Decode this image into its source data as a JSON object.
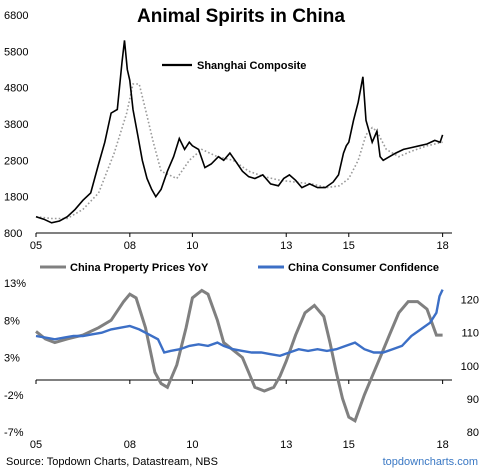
{
  "colors": {
    "shanghai": "#000000",
    "shanghai_ma": "#9a9a9a",
    "property": "#808080",
    "confidence": "#3c6fc6",
    "brand": "#3a78c4"
  },
  "footer": {
    "source": "Source: Topdown Charts, Datastream, NBS",
    "brand": "topdowncharts.com"
  },
  "chart_data": [
    {
      "type": "line",
      "title": "Animal Spirits in China",
      "xlim": [
        2005,
        2018.3
      ],
      "ylim": [
        800,
        6800
      ],
      "x_ticks": [
        2005,
        2008,
        2010,
        2013,
        2015,
        2018
      ],
      "x_tick_labels": [
        "05",
        "08",
        "10",
        "13",
        "15",
        "18"
      ],
      "y_ticks": [
        800,
        1800,
        2800,
        3800,
        4800,
        5800,
        6800
      ],
      "y_tick_labels": [
        "800",
        "1800",
        "2800",
        "3800",
        "4800",
        "5800",
        "6800"
      ],
      "legend_position": "top-center",
      "series": [
        {
          "name": "Shanghai Composite",
          "color": "#000000",
          "style": "solid",
          "x": [
            2005.0,
            2005.25,
            2005.5,
            2005.75,
            2006.0,
            2006.25,
            2006.5,
            2006.75,
            2007.0,
            2007.2,
            2007.4,
            2007.6,
            2007.75,
            2007.83,
            2007.92,
            2008.0,
            2008.1,
            2008.25,
            2008.4,
            2008.55,
            2008.7,
            2008.83,
            2009.0,
            2009.2,
            2009.4,
            2009.58,
            2009.75,
            2009.9,
            2010.0,
            2010.2,
            2010.4,
            2010.6,
            2010.83,
            2011.0,
            2011.2,
            2011.4,
            2011.6,
            2011.8,
            2012.0,
            2012.25,
            2012.5,
            2012.75,
            2012.92,
            2013.1,
            2013.3,
            2013.5,
            2013.75,
            2014.0,
            2014.25,
            2014.5,
            2014.67,
            2014.83,
            2014.92,
            2015.0,
            2015.15,
            2015.3,
            2015.45,
            2015.55,
            2015.65,
            2015.75,
            2015.9,
            2016.0,
            2016.1,
            2016.3,
            2016.5,
            2016.75,
            2017.0,
            2017.25,
            2017.5,
            2017.75,
            2017.92,
            2018.0
          ],
          "values": [
            1250,
            1180,
            1080,
            1130,
            1250,
            1450,
            1700,
            1900,
            2700,
            3300,
            4100,
            4200,
            5500,
            6100,
            5300,
            5000,
            4200,
            3500,
            2800,
            2300,
            2000,
            1800,
            2000,
            2500,
            2900,
            3400,
            3100,
            3300,
            3200,
            3100,
            2600,
            2700,
            2900,
            2800,
            3000,
            2750,
            2500,
            2350,
            2300,
            2400,
            2150,
            2100,
            2300,
            2400,
            2250,
            2050,
            2150,
            2050,
            2050,
            2200,
            2400,
            3000,
            3200,
            3300,
            3900,
            4400,
            5100,
            3900,
            3600,
            3300,
            3600,
            2900,
            2800,
            2900,
            3000,
            3100,
            3150,
            3200,
            3250,
            3350,
            3300,
            3500
          ]
        },
        {
          "name": "",
          "color": "#9a9a9a",
          "style": "dotted",
          "x": [
            2005.0,
            2005.5,
            2006.0,
            2006.5,
            2007.0,
            2007.5,
            2007.9,
            2008.1,
            2008.3,
            2008.5,
            2008.75,
            2009.0,
            2009.5,
            2009.9,
            2010.3,
            2010.8,
            2011.3,
            2011.8,
            2012.3,
            2012.8,
            2013.3,
            2013.8,
            2014.3,
            2014.7,
            2015.0,
            2015.3,
            2015.55,
            2015.75,
            2015.9,
            2016.2,
            2016.6,
            2017.0,
            2017.5,
            2018.0
          ],
          "values": [
            1250,
            1200,
            1200,
            1450,
            1900,
            3000,
            4100,
            4900,
            4900,
            4200,
            3300,
            2500,
            2300,
            2800,
            3100,
            2900,
            2800,
            2500,
            2350,
            2250,
            2200,
            2150,
            2050,
            2100,
            2300,
            2800,
            3500,
            3700,
            3600,
            3100,
            2900,
            3050,
            3200,
            3300
          ]
        }
      ]
    },
    {
      "type": "line",
      "xlim": [
        2005,
        2018.3
      ],
      "x_ticks": [
        2005,
        2008,
        2010,
        2013,
        2015,
        2018
      ],
      "x_tick_labels": [
        "05",
        "08",
        "10",
        "13",
        "15",
        "18"
      ],
      "y_left": {
        "ylim": [
          -7,
          13
        ],
        "ticks": [
          13,
          8,
          3,
          -2,
          -7
        ],
        "tick_labels": [
          "13%",
          "8%",
          "3%",
          "-2%",
          "-7%"
        ]
      },
      "y_right": {
        "ylim": [
          80,
          125
        ],
        "ticks": [
          80,
          90,
          100,
          110,
          120
        ],
        "tick_labels": [
          "80",
          "90",
          "100",
          "110",
          "120"
        ]
      },
      "legend_position": "top",
      "series": [
        {
          "name": "China Property Prices YoY",
          "axis": "left",
          "color": "#808080",
          "x": [
            2005.0,
            2005.3,
            2005.6,
            2006.0,
            2006.5,
            2007.0,
            2007.4,
            2007.8,
            2008.0,
            2008.2,
            2008.5,
            2008.8,
            2009.0,
            2009.2,
            2009.5,
            2009.8,
            2010.0,
            2010.3,
            2010.5,
            2010.8,
            2011.0,
            2011.3,
            2011.6,
            2011.8,
            2012.0,
            2012.3,
            2012.6,
            2012.8,
            2013.0,
            2013.3,
            2013.6,
            2013.9,
            2014.2,
            2014.4,
            2014.6,
            2014.8,
            2015.0,
            2015.2,
            2015.5,
            2015.8,
            2016.0,
            2016.3,
            2016.6,
            2016.9,
            2017.2,
            2017.5,
            2017.8,
            2018.0
          ],
          "values": [
            6.5,
            5.5,
            5.0,
            5.5,
            6.0,
            7.0,
            8.0,
            10.5,
            11.5,
            11.0,
            7.0,
            1.0,
            -0.5,
            -1.0,
            2.0,
            7.0,
            11.0,
            12.0,
            11.5,
            8.0,
            5.0,
            4.0,
            3.0,
            1.0,
            -1.0,
            -1.5,
            -1.0,
            0.5,
            2.5,
            6.0,
            9.0,
            10.0,
            8.5,
            5.0,
            1.0,
            -2.5,
            -5.0,
            -5.5,
            -2.0,
            1.0,
            3.0,
            6.0,
            9.0,
            10.5,
            10.5,
            9.5,
            6.0,
            6.0
          ]
        },
        {
          "name": "China Consumer Confidence",
          "axis": "right",
          "color": "#3c6fc6",
          "x": [
            2005.0,
            2005.3,
            2005.6,
            2005.9,
            2006.2,
            2006.5,
            2006.8,
            2007.1,
            2007.4,
            2007.7,
            2008.0,
            2008.3,
            2008.6,
            2008.9,
            2009.1,
            2009.3,
            2009.6,
            2009.9,
            2010.2,
            2010.5,
            2010.8,
            2011.0,
            2011.3,
            2011.6,
            2011.9,
            2012.2,
            2012.5,
            2012.8,
            2013.1,
            2013.4,
            2013.7,
            2014.0,
            2014.3,
            2014.6,
            2014.9,
            2015.2,
            2015.5,
            2015.8,
            2016.1,
            2016.4,
            2016.7,
            2017.0,
            2017.3,
            2017.6,
            2017.8,
            2017.9,
            2018.0
          ],
          "values": [
            109,
            108.5,
            108,
            108.5,
            109,
            109,
            109.5,
            110,
            111,
            111.5,
            112,
            111,
            109.5,
            108,
            104,
            104.5,
            105,
            106,
            106.5,
            106,
            107,
            106,
            105,
            104.5,
            104,
            104,
            103.5,
            103,
            104,
            105,
            104.5,
            105,
            104.5,
            105,
            106,
            107,
            105,
            104,
            104,
            105,
            106,
            109,
            111,
            113,
            116,
            121,
            123
          ]
        }
      ]
    }
  ]
}
